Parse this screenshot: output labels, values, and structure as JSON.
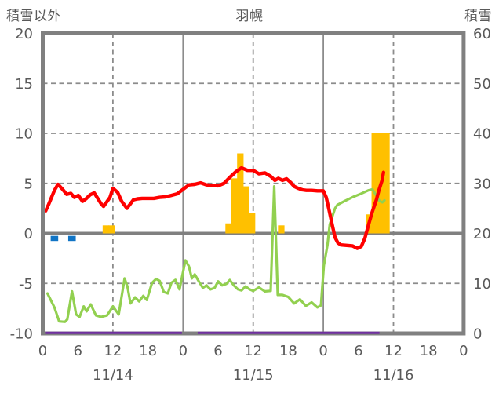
{
  "chart_data": {
    "type": "line+bar",
    "title": "羽幌",
    "left_axis": {
      "label": "積雪以外",
      "min": -10,
      "max": 20,
      "ticks": [
        20,
        15,
        10,
        5,
        0,
        -5,
        -10
      ]
    },
    "right_axis": {
      "label": "積雪",
      "min": 0,
      "max": 60,
      "ticks": [
        60,
        50,
        40,
        30,
        20,
        10,
        0
      ]
    },
    "x_axis": {
      "total_hours": 72,
      "tick_step_hours": 6,
      "tick_labels": [
        "0",
        "6",
        "12",
        "18",
        "0",
        "6",
        "12",
        "18",
        "0",
        "6",
        "12",
        "18",
        "0"
      ],
      "day_labels": [
        "11/14",
        "11/15",
        "11/16"
      ]
    },
    "grid": {
      "h_dashed_at": [
        15,
        10,
        5,
        -5
      ],
      "h_solid_at": [
        0
      ],
      "v_lines": [
        {
          "hour": 12,
          "style": "dashed"
        },
        {
          "hour": 24,
          "style": "solid"
        },
        {
          "hour": 36,
          "style": "dashed"
        },
        {
          "hour": 48,
          "style": "solid"
        },
        {
          "hour": 60,
          "style": "dashed"
        }
      ]
    },
    "series": {
      "temperature_line": {
        "color": "#FF0000",
        "points": [
          [
            0.5,
            2.25
          ],
          [
            1,
            2.9
          ],
          [
            2,
            4.3
          ],
          [
            2.6,
            4.9
          ],
          [
            3.4,
            4.4
          ],
          [
            4.1,
            3.9
          ],
          [
            4.8,
            4.0
          ],
          [
            5.4,
            3.6
          ],
          [
            6.1,
            3.8
          ],
          [
            6.8,
            3.2
          ],
          [
            7.4,
            3.45
          ],
          [
            8.1,
            3.85
          ],
          [
            8.8,
            4.05
          ],
          [
            10,
            2.95
          ],
          [
            10.4,
            2.7
          ],
          [
            11.5,
            3.6
          ],
          [
            12,
            4.5
          ],
          [
            12.8,
            4.1
          ],
          [
            13.5,
            3.2
          ],
          [
            14.4,
            2.5
          ],
          [
            15.5,
            3.35
          ],
          [
            16.2,
            3.45
          ],
          [
            17,
            3.5
          ],
          [
            18,
            3.5
          ],
          [
            19,
            3.5
          ],
          [
            20,
            3.6
          ],
          [
            21,
            3.65
          ],
          [
            22,
            3.8
          ],
          [
            23,
            3.95
          ],
          [
            24,
            4.4
          ],
          [
            25,
            4.85
          ],
          [
            26,
            4.9
          ],
          [
            27,
            5.05
          ],
          [
            28,
            4.85
          ],
          [
            29,
            4.8
          ],
          [
            30,
            4.75
          ],
          [
            31,
            5.0
          ],
          [
            32,
            5.6
          ],
          [
            33,
            6.15
          ],
          [
            34,
            6.55
          ],
          [
            35,
            6.3
          ],
          [
            36,
            6.3
          ],
          [
            37,
            5.95
          ],
          [
            38,
            6.05
          ],
          [
            39,
            5.7
          ],
          [
            39.7,
            5.3
          ],
          [
            40.3,
            5.5
          ],
          [
            41,
            5.3
          ],
          [
            41.7,
            5.45
          ],
          [
            42.4,
            5.1
          ],
          [
            43,
            4.7
          ],
          [
            43.7,
            4.5
          ],
          [
            44.4,
            4.35
          ],
          [
            45.1,
            4.3
          ],
          [
            46,
            4.3
          ],
          [
            47,
            4.25
          ],
          [
            48,
            4.25
          ],
          [
            48.5,
            3.6
          ],
          [
            49,
            2.3
          ],
          [
            49.5,
            0.9
          ],
          [
            50,
            -0.4
          ],
          [
            50.5,
            -0.95
          ],
          [
            51,
            -1.15
          ],
          [
            52,
            -1.2
          ],
          [
            53,
            -1.25
          ],
          [
            53.8,
            -1.5
          ],
          [
            54.5,
            -1.3
          ],
          [
            55.1,
            -0.5
          ],
          [
            55.8,
            1.0
          ],
          [
            56.4,
            2.2
          ],
          [
            57.1,
            3.4
          ],
          [
            57.5,
            4.3
          ],
          [
            58.05,
            5.3
          ],
          [
            58.3,
            6.1
          ]
        ]
      },
      "wind_line": {
        "color": "#92D050",
        "points": [
          [
            0.8,
            -6.0
          ],
          [
            2,
            -7.4
          ],
          [
            2.8,
            -8.8
          ],
          [
            3.8,
            -8.85
          ],
          [
            4.2,
            -8.6
          ],
          [
            5,
            -5.8
          ],
          [
            5.7,
            -8.1
          ],
          [
            6.3,
            -8.35
          ],
          [
            7,
            -7.3
          ],
          [
            7.5,
            -7.8
          ],
          [
            8.2,
            -7.1
          ],
          [
            9.1,
            -8.2
          ],
          [
            10,
            -8.35
          ],
          [
            11,
            -8.2
          ],
          [
            12,
            -7.3
          ],
          [
            13,
            -8.1
          ],
          [
            14,
            -4.5
          ],
          [
            14.5,
            -5.35
          ],
          [
            15,
            -7.0
          ],
          [
            15.8,
            -6.4
          ],
          [
            16.5,
            -6.8
          ],
          [
            17.2,
            -6.25
          ],
          [
            17.8,
            -6.65
          ],
          [
            18.7,
            -4.95
          ],
          [
            19.4,
            -4.55
          ],
          [
            20,
            -4.75
          ],
          [
            20.7,
            -5.85
          ],
          [
            21.4,
            -6.0
          ],
          [
            22,
            -4.95
          ],
          [
            22.7,
            -4.65
          ],
          [
            23.4,
            -5.6
          ],
          [
            24.4,
            -2.7
          ],
          [
            25,
            -3.3
          ],
          [
            25.5,
            -4.5
          ],
          [
            26,
            -4.1
          ],
          [
            26.7,
            -4.8
          ],
          [
            27.4,
            -5.45
          ],
          [
            28,
            -5.2
          ],
          [
            28.7,
            -5.6
          ],
          [
            29.4,
            -5.45
          ],
          [
            30,
            -4.8
          ],
          [
            30.7,
            -5.2
          ],
          [
            31.4,
            -5.05
          ],
          [
            32,
            -4.67
          ],
          [
            32.7,
            -5.2
          ],
          [
            33.4,
            -5.6
          ],
          [
            34,
            -5.7
          ],
          [
            34.7,
            -5.3
          ],
          [
            35.4,
            -5.6
          ],
          [
            36,
            -5.75
          ],
          [
            37,
            -5.4
          ],
          [
            38,
            -5.8
          ],
          [
            39,
            -5.75
          ],
          [
            39.6,
            4.7
          ],
          [
            40.2,
            -6.15
          ],
          [
            41,
            -6.15
          ],
          [
            42,
            -6.35
          ],
          [
            43,
            -7.0
          ],
          [
            44,
            -6.6
          ],
          [
            45,
            -7.25
          ],
          [
            46,
            -6.9
          ],
          [
            47,
            -7.4
          ],
          [
            47.6,
            -7.2
          ],
          [
            48.1,
            -3.2
          ],
          [
            48.7,
            -1.2
          ],
          [
            49.1,
            0.9
          ],
          [
            50,
            2.5
          ],
          [
            50.4,
            2.85
          ],
          [
            51.7,
            3.25
          ],
          [
            53.1,
            3.65
          ],
          [
            54.4,
            3.95
          ],
          [
            55.7,
            4.3
          ],
          [
            56.4,
            4.4
          ],
          [
            57.1,
            3.75
          ],
          [
            57.6,
            3.25
          ],
          [
            58.1,
            3.1
          ],
          [
            58.45,
            3.3
          ]
        ]
      },
      "precipitation_bars": {
        "color": "#FFC000",
        "bar_width_hours": 1,
        "bars": [
          [
            11,
            0.8
          ],
          [
            12,
            0.8
          ],
          [
            32,
            1.0
          ],
          [
            33,
            5.5
          ],
          [
            34,
            8.0
          ],
          [
            35,
            4.7
          ],
          [
            36,
            2.0
          ],
          [
            41,
            0.8
          ],
          [
            56,
            1.9
          ],
          [
            57,
            10
          ],
          [
            58,
            10
          ],
          [
            59,
            10
          ]
        ]
      },
      "snow_depth_line": {
        "color": "#7030A0",
        "value": -9.95,
        "segments_hours": [
          [
            0.4,
            23.8
          ],
          [
            26.5,
            57.6
          ]
        ]
      },
      "blue_marks": {
        "color": "#1074C5",
        "hours": [
          2,
          5
        ]
      }
    },
    "style": {
      "frame_color": "#808080",
      "grid_color": "#8C8C8C",
      "text_color": "#595959"
    }
  }
}
